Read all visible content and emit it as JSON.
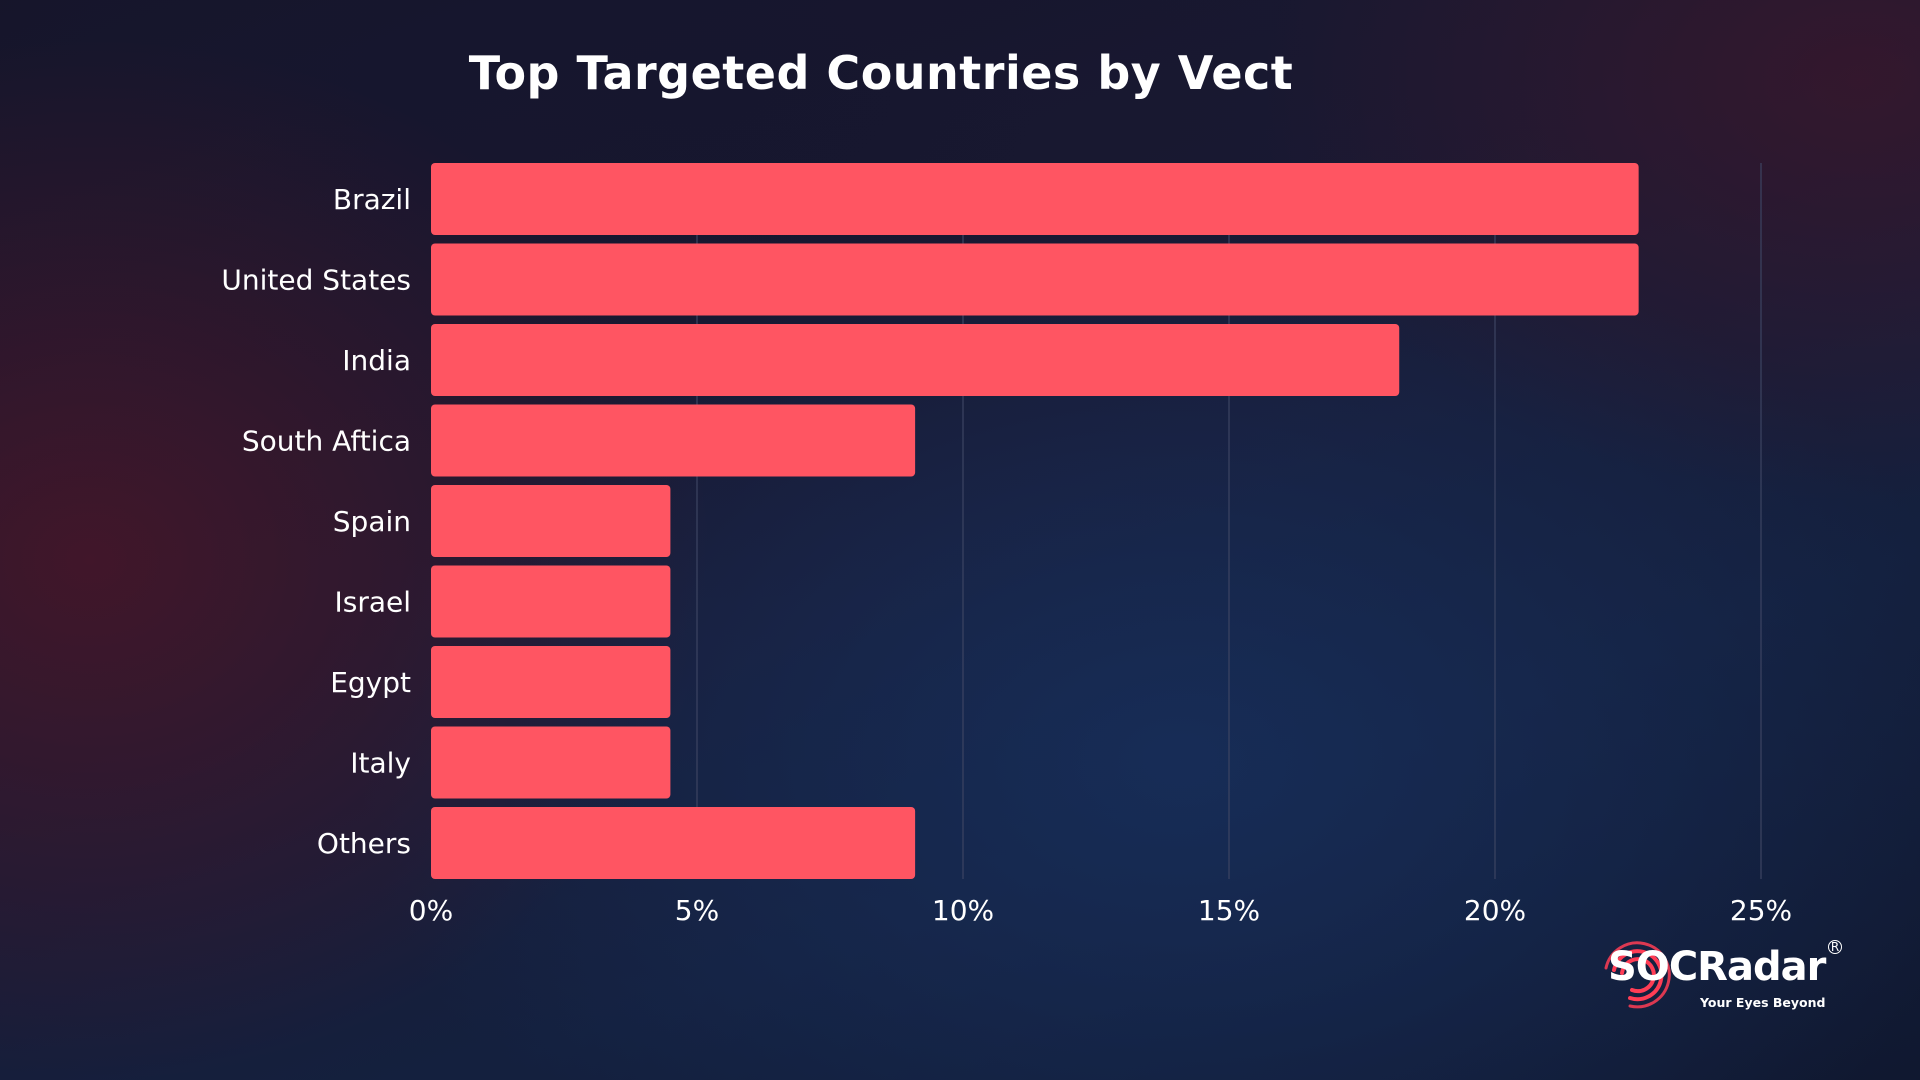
{
  "chart_data": {
    "type": "bar",
    "orientation": "horizontal",
    "title": "Top Targeted Countries by Vect",
    "categories": [
      "Brazil",
      "United States",
      "India",
      "South Aftica",
      "Spain",
      "Israel",
      "Egypt",
      "Italy",
      "Others"
    ],
    "values": [
      22.7,
      22.7,
      18.2,
      9.1,
      4.5,
      4.5,
      4.5,
      4.5,
      9.1
    ],
    "xlim": [
      0,
      25
    ],
    "xticks": [
      0,
      5,
      10,
      15,
      20,
      25
    ],
    "xtick_labels": [
      "0%",
      "5%",
      "10%",
      "15%",
      "20%",
      "25%"
    ],
    "xlabel": "",
    "ylabel": "",
    "grid": "vertical",
    "legend": "none",
    "bar_color": "#ff5562"
  },
  "colors": {
    "text": "#ffffff",
    "gridline": "#3c4462",
    "brand_accent": "#ff3d55"
  },
  "logo": {
    "brand_name": "SOCRadar",
    "registered_mark": "R",
    "tagline": "Your Eyes Beyond"
  }
}
